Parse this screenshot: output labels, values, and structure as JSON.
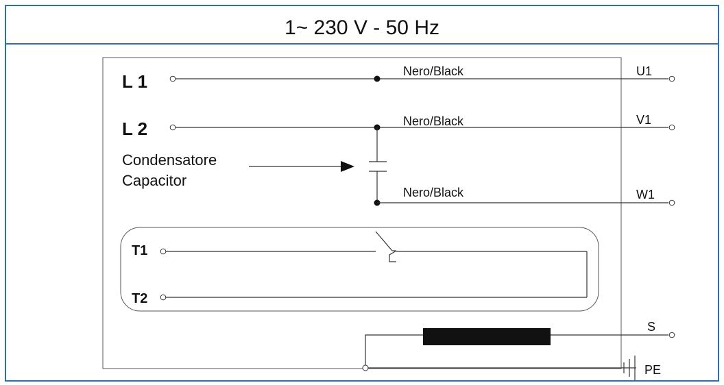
{
  "title": "1~ 230 V - 50 Hz",
  "inputs": {
    "l1": "L 1",
    "l2": "L 2"
  },
  "wire_labels": {
    "u1": "Nero/Black",
    "v1": "Nero/Black",
    "w1": "Nero/Black"
  },
  "outputs": {
    "u1": "U1",
    "v1": "V1",
    "w1": "W1",
    "s": "S",
    "pe": "PE"
  },
  "capacitor": {
    "line1": "Condensatore",
    "line2": "Capacitor"
  },
  "thermal": {
    "t1": "T1",
    "t2": "T2"
  },
  "colors": {
    "border": "#2a6fb3",
    "wire": "#333333",
    "heater": "#111111"
  }
}
